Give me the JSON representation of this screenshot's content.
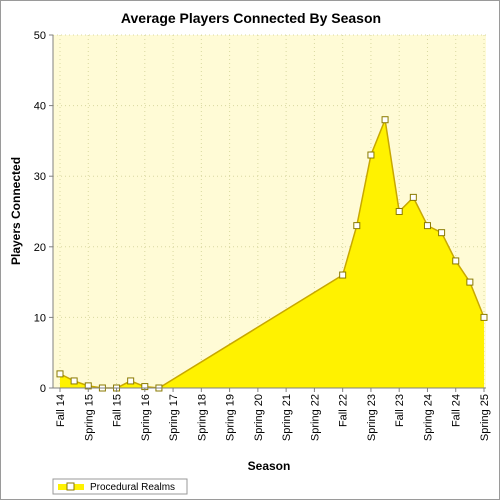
{
  "chart_data": {
    "type": "area",
    "title": "Average Players Connected By Season",
    "xlabel": "Season",
    "ylabel": "Players Connected",
    "ylim": [
      0,
      50
    ],
    "yticks": [
      0,
      10,
      20,
      30,
      40,
      50
    ],
    "grid": true,
    "legend_position": "bottom-left",
    "categories": [
      "Fall 14",
      "Spring 15",
      "Fall 15",
      "Spring 16",
      "Spring 17",
      "Spring 18",
      "Spring 19",
      "Spring 20",
      "Spring 21",
      "Spring 22",
      "Fall 22",
      "Spring 23",
      "Fall 23",
      "Spring 24",
      "Fall 24",
      "Spring 25"
    ],
    "series": [
      {
        "name": "Procedural Realms",
        "color": "#fff200",
        "line_color": "#c8a800",
        "points": [
          {
            "x": 0.0,
            "y": 2
          },
          {
            "x": 0.5,
            "y": 1
          },
          {
            "x": 1.0,
            "y": 0.3
          },
          {
            "x": 1.5,
            "y": 0
          },
          {
            "x": 2.0,
            "y": 0
          },
          {
            "x": 2.5,
            "y": 1
          },
          {
            "x": 3.0,
            "y": 0.2
          },
          {
            "x": 3.5,
            "y": 0
          },
          {
            "x": 10.0,
            "y": 16
          },
          {
            "x": 10.5,
            "y": 23
          },
          {
            "x": 11.0,
            "y": 33
          },
          {
            "x": 11.5,
            "y": 38
          },
          {
            "x": 12.0,
            "y": 25
          },
          {
            "x": 12.5,
            "y": 27
          },
          {
            "x": 13.0,
            "y": 23
          },
          {
            "x": 13.5,
            "y": 22
          },
          {
            "x": 14.0,
            "y": 18
          },
          {
            "x": 14.5,
            "y": 15
          },
          {
            "x": 15.0,
            "y": 10
          }
        ]
      }
    ]
  },
  "colors": {
    "plot_background": "#fffbd6",
    "grid": "#d8d8a0"
  }
}
